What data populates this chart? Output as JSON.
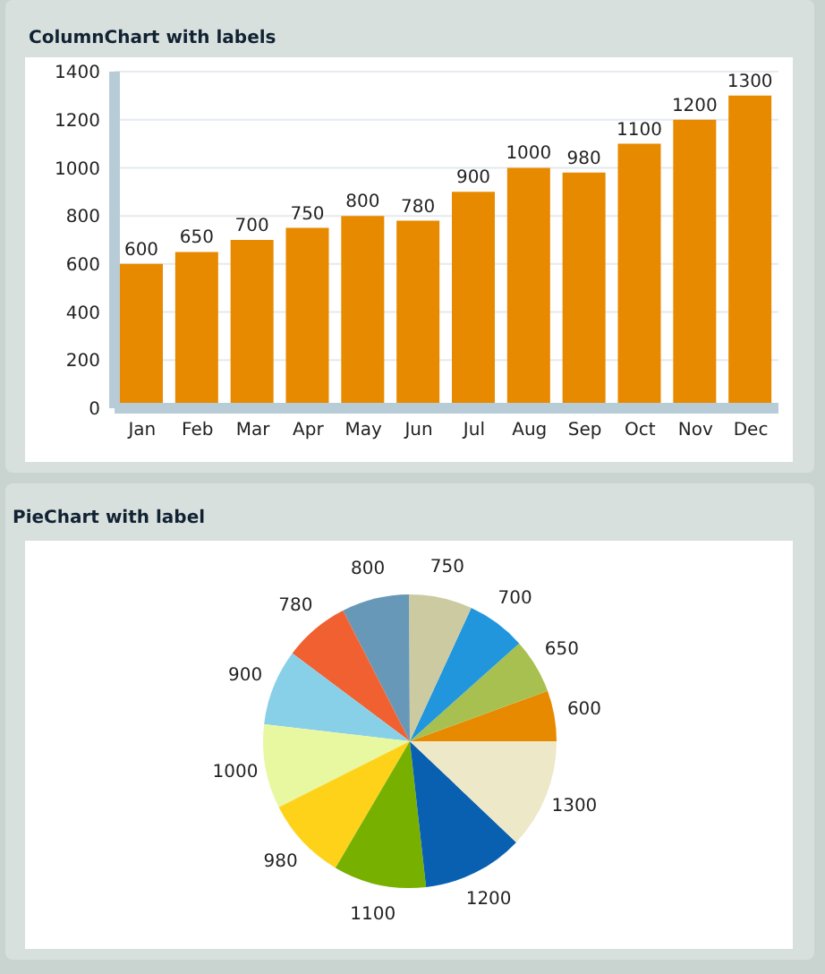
{
  "chart_data": [
    {
      "type": "bar",
      "title": "ColumnChart with labels",
      "categories": [
        "Jan",
        "Feb",
        "Mar",
        "Apr",
        "May",
        "Jun",
        "Jul",
        "Aug",
        "Sep",
        "Oct",
        "Nov",
        "Dec"
      ],
      "values": [
        600,
        650,
        700,
        750,
        800,
        780,
        900,
        1000,
        980,
        1100,
        1200,
        1300
      ],
      "color": "#e88a00",
      "ylim": [
        0,
        1400
      ],
      "yticks": [
        0,
        200,
        400,
        600,
        800,
        1000,
        1200,
        1400
      ],
      "grid": "y",
      "data_labels": true
    },
    {
      "type": "pie",
      "title": "PieChart with label",
      "categories": [
        null,
        null,
        null,
        null,
        null,
        null,
        null,
        null,
        null,
        null,
        null,
        null
      ],
      "values": [
        600,
        650,
        700,
        750,
        800,
        780,
        900,
        1000,
        980,
        1100,
        1200,
        1300
      ],
      "colors": [
        "#e88a00",
        "#a8c050",
        "#2196dd",
        "#cccaa0",
        "#6898b8",
        "#f06030",
        "#88d0e8",
        "#e8f8a0",
        "#ffd21a",
        "#78b000",
        "#0a60b0",
        "#ede8c8"
      ],
      "data_labels": true
    }
  ]
}
